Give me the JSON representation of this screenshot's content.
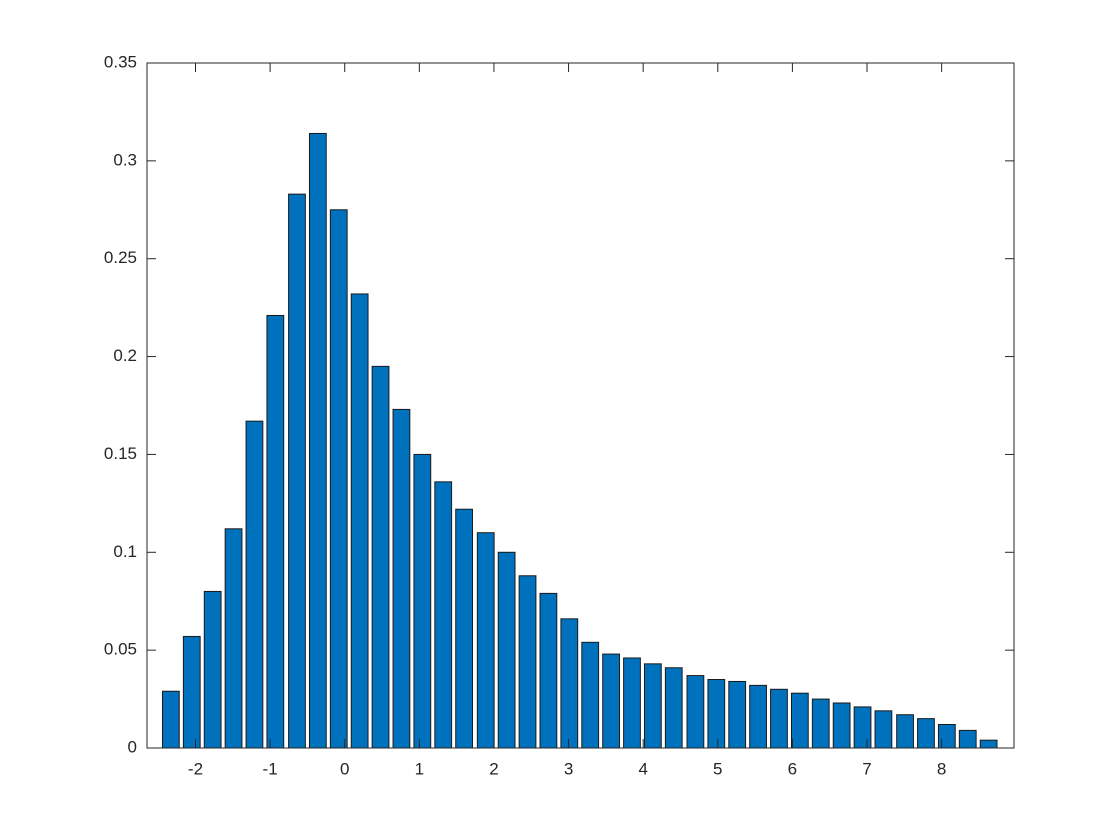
{
  "chart_data": {
    "type": "bar",
    "x": [
      -2.33,
      -2.05,
      -1.77,
      -1.49,
      -1.21,
      -0.93,
      -0.64,
      -0.36,
      -0.08,
      0.2,
      0.48,
      0.76,
      1.04,
      1.32,
      1.6,
      1.89,
      2.17,
      2.45,
      2.73,
      3.01,
      3.29,
      3.57,
      3.85,
      4.13,
      4.41,
      4.7,
      4.98,
      5.26,
      5.54,
      5.82,
      6.1,
      6.38,
      6.66,
      6.94,
      7.22,
      7.51,
      7.79,
      8.07,
      8.35,
      8.63
    ],
    "values": [
      0.029,
      0.057,
      0.08,
      0.112,
      0.167,
      0.221,
      0.283,
      0.314,
      0.275,
      0.232,
      0.195,
      0.173,
      0.15,
      0.136,
      0.122,
      0.11,
      0.1,
      0.088,
      0.079,
      0.066,
      0.054,
      0.048,
      0.046,
      0.043,
      0.041,
      0.037,
      0.035,
      0.034,
      0.032,
      0.03,
      0.028,
      0.025,
      0.023,
      0.021,
      0.019,
      0.017,
      0.015,
      0.012,
      0.009,
      0.004
    ],
    "color": "#0072bd",
    "edgecolor": "#1a1a1a",
    "xlim": [
      -2.65,
      8.97
    ],
    "xticks": [
      -2,
      -1,
      0,
      1,
      2,
      3,
      4,
      5,
      6,
      7,
      8
    ],
    "ylim": [
      0,
      0.35
    ],
    "yticks": [
      0,
      0.05,
      0.1,
      0.15,
      0.2,
      0.25,
      0.3,
      0.35
    ],
    "grid": false
  }
}
